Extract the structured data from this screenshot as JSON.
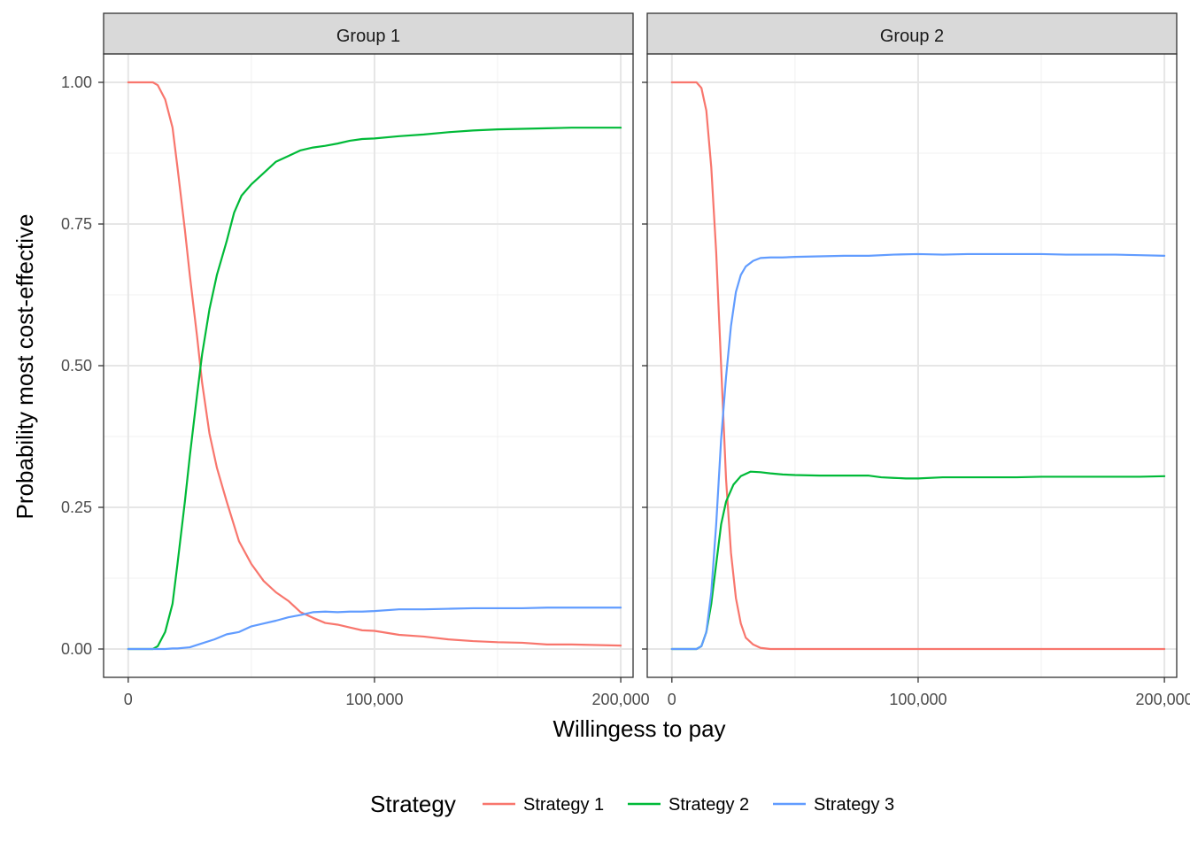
{
  "chart_data": {
    "type": "line",
    "xlabel": "Willingess to pay",
    "ylabel": "Probability most cost-effective",
    "xlim": [
      -10000,
      205000
    ],
    "ylim": [
      -0.05,
      1.05
    ],
    "x_ticks": [
      0,
      100000,
      200000
    ],
    "x_tick_labels": [
      "0",
      "100,000",
      "200,000"
    ],
    "y_ticks": [
      0,
      0.25,
      0.5,
      0.75,
      1
    ],
    "y_tick_labels": [
      "0.00",
      "0.25",
      "0.50",
      "0.75",
      "1.00"
    ],
    "grid": true,
    "legend": {
      "title": "Strategy",
      "position": "bottom"
    },
    "series_colors": {
      "Strategy 1": "#F8766D",
      "Strategy 2": "#00BA38",
      "Strategy 3": "#619CFF"
    },
    "panels": [
      {
        "strip": "Group 1",
        "series": [
          {
            "name": "Strategy 1",
            "points": [
              [
                0,
                1
              ],
              [
                5000,
                1
              ],
              [
                10000,
                1
              ],
              [
                12000,
                0.995
              ],
              [
                15000,
                0.97
              ],
              [
                18000,
                0.92
              ],
              [
                20000,
                0.85
              ],
              [
                23000,
                0.74
              ],
              [
                25000,
                0.66
              ],
              [
                28000,
                0.55
              ],
              [
                30000,
                0.47
              ],
              [
                33000,
                0.38
              ],
              [
                36000,
                0.32
              ],
              [
                40000,
                0.26
              ],
              [
                45000,
                0.19
              ],
              [
                50000,
                0.15
              ],
              [
                55000,
                0.12
              ],
              [
                60000,
                0.1
              ],
              [
                65000,
                0.085
              ],
              [
                70000,
                0.065
              ],
              [
                75000,
                0.055
              ],
              [
                80000,
                0.046
              ],
              [
                85000,
                0.043
              ],
              [
                90000,
                0.038
              ],
              [
                95000,
                0.033
              ],
              [
                100000,
                0.032
              ],
              [
                110000,
                0.025
              ],
              [
                120000,
                0.022
              ],
              [
                130000,
                0.017
              ],
              [
                140000,
                0.014
              ],
              [
                150000,
                0.012
              ],
              [
                160000,
                0.011
              ],
              [
                170000,
                0.008
              ],
              [
                180000,
                0.008
              ],
              [
                190000,
                0.007
              ],
              [
                200000,
                0.006
              ]
            ]
          },
          {
            "name": "Strategy 2",
            "points": [
              [
                0,
                0
              ],
              [
                5000,
                0
              ],
              [
                10000,
                0
              ],
              [
                12000,
                0.005
              ],
              [
                15000,
                0.03
              ],
              [
                18000,
                0.08
              ],
              [
                20000,
                0.15
              ],
              [
                23000,
                0.26
              ],
              [
                25000,
                0.34
              ],
              [
                28000,
                0.45
              ],
              [
                30000,
                0.52
              ],
              [
                33000,
                0.6
              ],
              [
                36000,
                0.66
              ],
              [
                40000,
                0.72
              ],
              [
                43000,
                0.77
              ],
              [
                46000,
                0.8
              ],
              [
                50000,
                0.82
              ],
              [
                55000,
                0.84
              ],
              [
                60000,
                0.86
              ],
              [
                65000,
                0.87
              ],
              [
                70000,
                0.88
              ],
              [
                75000,
                0.885
              ],
              [
                80000,
                0.888
              ],
              [
                85000,
                0.892
              ],
              [
                90000,
                0.897
              ],
              [
                95000,
                0.9
              ],
              [
                100000,
                0.901
              ],
              [
                110000,
                0.905
              ],
              [
                120000,
                0.908
              ],
              [
                130000,
                0.912
              ],
              [
                140000,
                0.915
              ],
              [
                150000,
                0.917
              ],
              [
                160000,
                0.918
              ],
              [
                170000,
                0.919
              ],
              [
                180000,
                0.92
              ],
              [
                190000,
                0.92
              ],
              [
                200000,
                0.92
              ]
            ]
          },
          {
            "name": "Strategy 3",
            "points": [
              [
                0,
                0
              ],
              [
                10000,
                0
              ],
              [
                15000,
                0
              ],
              [
                18000,
                0.001
              ],
              [
                20000,
                0.001
              ],
              [
                25000,
                0.003
              ],
              [
                30000,
                0.01
              ],
              [
                35000,
                0.017
              ],
              [
                40000,
                0.026
              ],
              [
                45000,
                0.03
              ],
              [
                50000,
                0.04
              ],
              [
                55000,
                0.045
              ],
              [
                60000,
                0.05
              ],
              [
                65000,
                0.056
              ],
              [
                70000,
                0.06
              ],
              [
                75000,
                0.065
              ],
              [
                80000,
                0.066
              ],
              [
                85000,
                0.065
              ],
              [
                90000,
                0.066
              ],
              [
                95000,
                0.066
              ],
              [
                100000,
                0.067
              ],
              [
                110000,
                0.07
              ],
              [
                120000,
                0.07
              ],
              [
                130000,
                0.071
              ],
              [
                140000,
                0.072
              ],
              [
                150000,
                0.072
              ],
              [
                160000,
                0.072
              ],
              [
                170000,
                0.073
              ],
              [
                180000,
                0.073
              ],
              [
                190000,
                0.073
              ],
              [
                200000,
                0.073
              ]
            ]
          }
        ]
      },
      {
        "strip": "Group 2",
        "series": [
          {
            "name": "Strategy 1",
            "points": [
              [
                0,
                1
              ],
              [
                5000,
                1
              ],
              [
                10000,
                1
              ],
              [
                12000,
                0.99
              ],
              [
                14000,
                0.95
              ],
              [
                16000,
                0.85
              ],
              [
                18000,
                0.7
              ],
              [
                20000,
                0.5
              ],
              [
                22000,
                0.3
              ],
              [
                24000,
                0.17
              ],
              [
                26000,
                0.09
              ],
              [
                28000,
                0.045
              ],
              [
                30000,
                0.02
              ],
              [
                33000,
                0.008
              ],
              [
                36000,
                0.002
              ],
              [
                40000,
                0
              ],
              [
                60000,
                0
              ],
              [
                100000,
                0
              ],
              [
                150000,
                0
              ],
              [
                200000,
                0
              ]
            ]
          },
          {
            "name": "Strategy 2",
            "points": [
              [
                0,
                0
              ],
              [
                10000,
                0
              ],
              [
                12000,
                0.005
              ],
              [
                14000,
                0.03
              ],
              [
                16000,
                0.08
              ],
              [
                18000,
                0.15
              ],
              [
                20000,
                0.22
              ],
              [
                22000,
                0.26
              ],
              [
                25000,
                0.29
              ],
              [
                28000,
                0.305
              ],
              [
                32000,
                0.313
              ],
              [
                36000,
                0.312
              ],
              [
                40000,
                0.31
              ],
              [
                45000,
                0.308
              ],
              [
                50000,
                0.307
              ],
              [
                60000,
                0.306
              ],
              [
                70000,
                0.306
              ],
              [
                80000,
                0.306
              ],
              [
                85000,
                0.303
              ],
              [
                90000,
                0.302
              ],
              [
                95000,
                0.301
              ],
              [
                100000,
                0.301
              ],
              [
                110000,
                0.303
              ],
              [
                120000,
                0.303
              ],
              [
                130000,
                0.303
              ],
              [
                140000,
                0.303
              ],
              [
                150000,
                0.304
              ],
              [
                160000,
                0.304
              ],
              [
                170000,
                0.304
              ],
              [
                180000,
                0.304
              ],
              [
                190000,
                0.304
              ],
              [
                200000,
                0.305
              ]
            ]
          },
          {
            "name": "Strategy 3",
            "points": [
              [
                0,
                0
              ],
              [
                10000,
                0
              ],
              [
                12000,
                0.005
              ],
              [
                14000,
                0.03
              ],
              [
                16000,
                0.1
              ],
              [
                18000,
                0.22
              ],
              [
                20000,
                0.37
              ],
              [
                22000,
                0.48
              ],
              [
                24000,
                0.57
              ],
              [
                26000,
                0.63
              ],
              [
                28000,
                0.66
              ],
              [
                30000,
                0.675
              ],
              [
                33000,
                0.685
              ],
              [
                36000,
                0.69
              ],
              [
                40000,
                0.691
              ],
              [
                45000,
                0.691
              ],
              [
                50000,
                0.692
              ],
              [
                60000,
                0.693
              ],
              [
                70000,
                0.694
              ],
              [
                80000,
                0.694
              ],
              [
                90000,
                0.696
              ],
              [
                100000,
                0.697
              ],
              [
                110000,
                0.696
              ],
              [
                120000,
                0.697
              ],
              [
                130000,
                0.697
              ],
              [
                140000,
                0.697
              ],
              [
                150000,
                0.697
              ],
              [
                160000,
                0.696
              ],
              [
                170000,
                0.696
              ],
              [
                180000,
                0.696
              ],
              [
                190000,
                0.695
              ],
              [
                200000,
                0.694
              ]
            ]
          }
        ]
      }
    ]
  }
}
